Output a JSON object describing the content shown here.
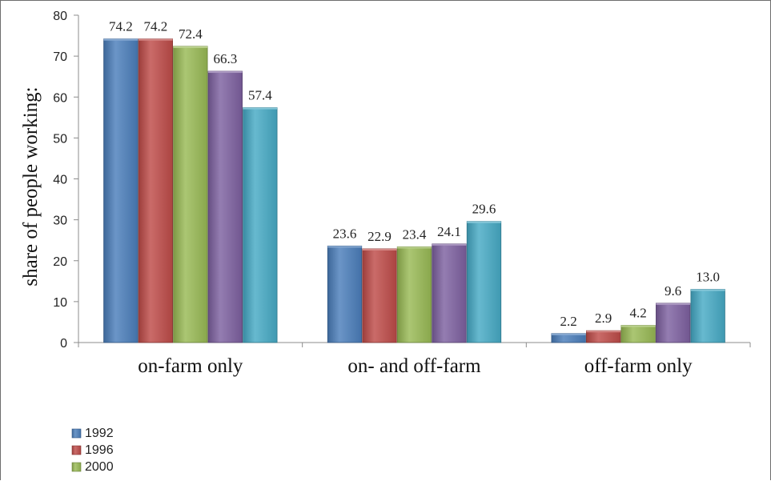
{
  "chart_data": {
    "type": "bar",
    "title": "",
    "xlabel": "",
    "ylabel": "share of people working:",
    "ylim": [
      0,
      80
    ],
    "yticks": [
      0,
      10,
      20,
      30,
      40,
      50,
      60,
      70,
      80
    ],
    "grid": false,
    "legend_position": "bottom-left",
    "categories": [
      "on-farm only",
      "on- and off-farm",
      "off-farm only"
    ],
    "series": [
      {
        "name": "1992",
        "color": "#4a7ebb",
        "values": [
          74.2,
          23.6,
          2.2
        ],
        "labels": [
          "74.2",
          "23.6",
          "2.2"
        ]
      },
      {
        "name": "1996",
        "color": "#be4b48",
        "values": [
          74.2,
          22.9,
          2.9
        ],
        "labels": [
          "74.2",
          "22.9",
          "2.9"
        ]
      },
      {
        "name": "2000",
        "color": "#98b954",
        "values": [
          72.4,
          23.4,
          4.2
        ],
        "labels": [
          "72.4",
          "23.4",
          "4.2"
        ]
      },
      {
        "name": "",
        "color": "#7d60a0",
        "values": [
          66.3,
          24.1,
          9.6
        ],
        "labels": [
          "66.3",
          "24.1",
          "9.6"
        ]
      },
      {
        "name": "",
        "color": "#46aac5",
        "values": [
          57.4,
          29.6,
          13.0
        ],
        "labels": [
          "57.4",
          "29.6",
          "13.0"
        ]
      }
    ]
  }
}
